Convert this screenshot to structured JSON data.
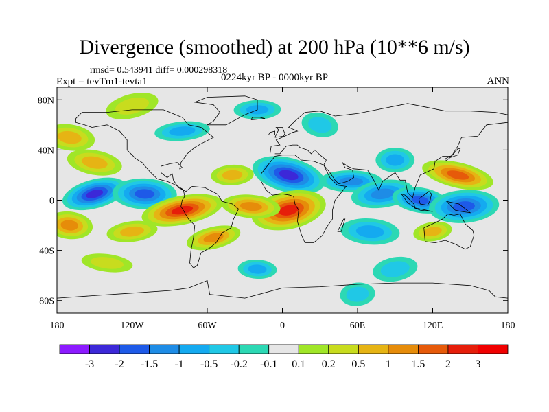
{
  "header": {
    "title": "Divergence (smoothed) at 200 hPa (10**6 m/s)",
    "stats": "rmsd= 0.543941 diff= 0.000298318",
    "experiment": "Expt = tevTm1-tevta1",
    "period": "0224kyr BP - 0000kyr BP",
    "season": "ANN"
  },
  "chart_data": {
    "type": "heatmap",
    "title": "Divergence (smoothed) at 200 hPa (10**6 m/s)",
    "xlabel": "",
    "ylabel": "",
    "xlim": [
      -180,
      180
    ],
    "ylim": [
      -90,
      90
    ],
    "x_ticks": [
      {
        "value": -180,
        "label": "180"
      },
      {
        "value": -120,
        "label": "120W"
      },
      {
        "value": -60,
        "label": "60W"
      },
      {
        "value": 0,
        "label": "0"
      },
      {
        "value": 60,
        "label": "60E"
      },
      {
        "value": 120,
        "label": "120E"
      },
      {
        "value": 180,
        "label": "180"
      }
    ],
    "y_ticks": [
      {
        "value": 80,
        "label": "80N"
      },
      {
        "value": 40,
        "label": "40N"
      },
      {
        "value": 0,
        "label": "0"
      },
      {
        "value": -40,
        "label": "40S"
      },
      {
        "value": -80,
        "label": "80S"
      }
    ],
    "colorbar": {
      "labels": [
        "-3",
        "-2",
        "-1.5",
        "-1",
        "-0.5",
        "-0.2",
        "-0.1",
        "0.1",
        "0.2",
        "0.5",
        "1",
        "1.5",
        "2",
        "3"
      ],
      "colors": [
        "#8c1aff",
        "#3c28d8",
        "#1e5ae8",
        "#1e8ce6",
        "#14aaf0",
        "#20c8e6",
        "#2cd8b4",
        "#e6e6e6",
        "#a0e628",
        "#c8dc1e",
        "#e6b414",
        "#e68c0a",
        "#e65a0a",
        "#e61e0a",
        "#f00000"
      ]
    },
    "fields": [
      {
        "lon": -150,
        "lat": 5,
        "value": -2.0
      },
      {
        "lon": -110,
        "lat": 5,
        "value": -1.5
      },
      {
        "lon": -80,
        "lat": -8,
        "value": 2.0
      },
      {
        "lon": -170,
        "lat": -20,
        "value": 1.0
      },
      {
        "lon": -120,
        "lat": -25,
        "value": 0.8
      },
      {
        "lon": -150,
        "lat": 30,
        "value": 0.6
      },
      {
        "lon": -40,
        "lat": 20,
        "value": 0.8
      },
      {
        "lon": 5,
        "lat": 20,
        "value": -2.0
      },
      {
        "lon": 55,
        "lat": 15,
        "value": -1.0
      },
      {
        "lon": 5,
        "lat": -8,
        "value": 2.5
      },
      {
        "lon": -25,
        "lat": -5,
        "value": 1.2
      },
      {
        "lon": 80,
        "lat": 5,
        "value": -1.0
      },
      {
        "lon": 110,
        "lat": 0,
        "value": -1.5
      },
      {
        "lon": 145,
        "lat": -5,
        "value": -1.8
      },
      {
        "lon": 140,
        "lat": 20,
        "value": 1.5
      },
      {
        "lon": 90,
        "lat": 32,
        "value": -0.6
      },
      {
        "lon": -55,
        "lat": -30,
        "value": 1.0
      },
      {
        "lon": 70,
        "lat": -25,
        "value": -0.8
      },
      {
        "lon": 120,
        "lat": -25,
        "value": 0.6
      },
      {
        "lon": -170,
        "lat": 50,
        "value": 0.8
      },
      {
        "lon": -80,
        "lat": 55,
        "value": -0.6
      },
      {
        "lon": 30,
        "lat": 60,
        "value": -0.5
      },
      {
        "lon": -20,
        "lat": 72,
        "value": -0.6
      },
      {
        "lon": -120,
        "lat": 75,
        "value": 0.5
      },
      {
        "lon": -20,
        "lat": -55,
        "value": -0.6
      },
      {
        "lon": 90,
        "lat": -55,
        "value": -0.5
      },
      {
        "lon": -140,
        "lat": -50,
        "value": 0.4
      },
      {
        "lon": 60,
        "lat": -75,
        "value": -0.4
      }
    ]
  }
}
